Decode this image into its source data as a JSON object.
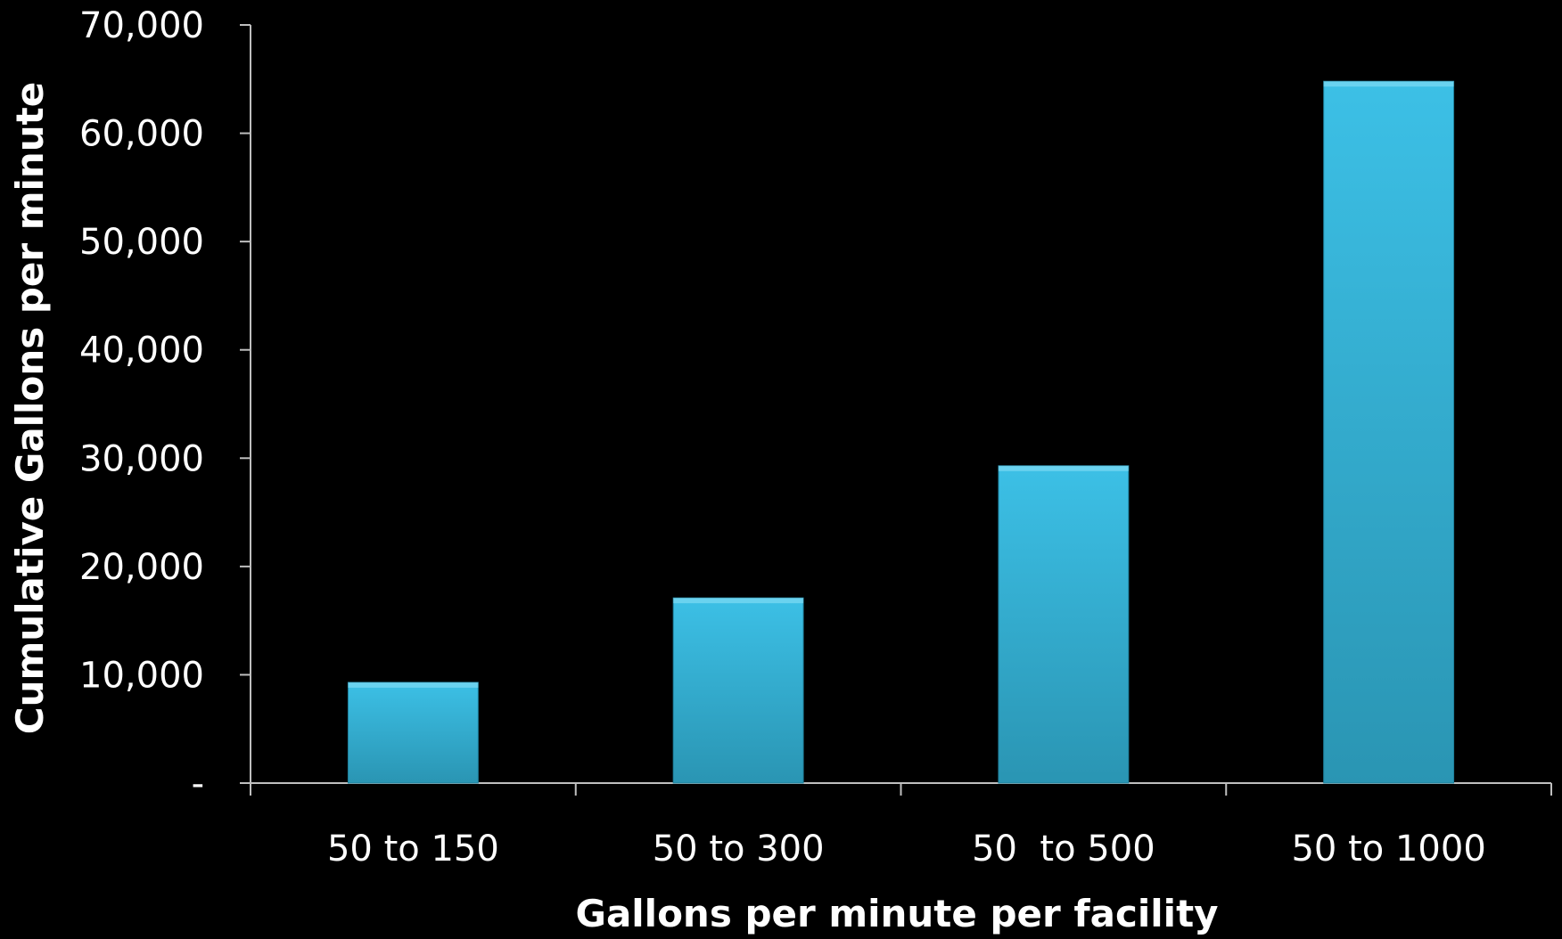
{
  "chart_data": {
    "type": "bar",
    "title": "",
    "xlabel": "Gallons per minute per facility",
    "ylabel": "Cumulative Gallons per minute",
    "categories": [
      "50 to 150",
      "50 to 300",
      "50  to 500",
      "50 to 1000"
    ],
    "values": [
      9300,
      17100,
      29300,
      64800
    ],
    "ylim": [
      0,
      70000
    ],
    "yticks": [
      0,
      10000,
      20000,
      30000,
      40000,
      50000,
      60000,
      70000
    ],
    "ytick_labels": [
      "-",
      "10,000",
      "20,000",
      "30,000",
      "40,000",
      "50,000",
      "60,000",
      "70,000"
    ],
    "grid": false,
    "legend": "none",
    "colors": {
      "background": "#000000",
      "bar_light": "#3cc0e6",
      "bar_dark": "#2a95b3",
      "axis": "#bfbfbf",
      "text": "#ffffff"
    }
  }
}
